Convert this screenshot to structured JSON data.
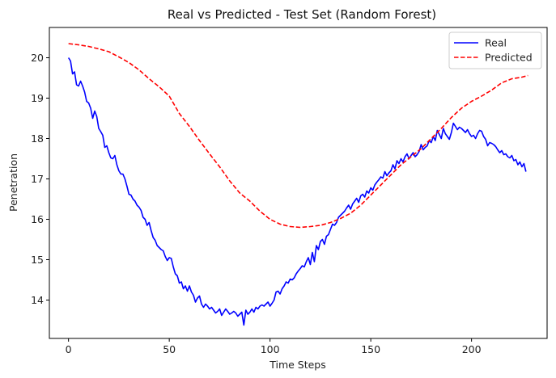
{
  "chart_data": {
    "type": "line",
    "title": "Real vs Predicted - Test Set (Random Forest)",
    "xlabel": "Time Steps",
    "ylabel": "Penetration",
    "xlim": [
      -9.5,
      237.5
    ],
    "ylim": [
      13.05,
      20.75
    ],
    "xticks": [
      0,
      50,
      100,
      150,
      200
    ],
    "yticks": [
      14,
      15,
      16,
      17,
      18,
      19,
      20
    ],
    "grid": false,
    "legend_position": "top-right",
    "colors": {
      "real": "#0000ff",
      "predicted": "#ff0000"
    },
    "series": [
      {
        "name": "Real",
        "style": "solid",
        "points": [
          [
            0,
            20.0
          ],
          [
            1,
            19.92
          ],
          [
            2,
            19.6
          ],
          [
            3,
            19.65
          ],
          [
            4,
            19.33
          ],
          [
            5,
            19.3
          ],
          [
            6,
            19.42
          ],
          [
            7,
            19.3
          ],
          [
            8,
            19.15
          ],
          [
            9,
            18.92
          ],
          [
            10,
            18.88
          ],
          [
            11,
            18.75
          ],
          [
            12,
            18.5
          ],
          [
            13,
            18.68
          ],
          [
            14,
            18.55
          ],
          [
            15,
            18.25
          ],
          [
            16,
            18.17
          ],
          [
            17,
            18.08
          ],
          [
            18,
            17.78
          ],
          [
            19,
            17.82
          ],
          [
            20,
            17.65
          ],
          [
            21,
            17.52
          ],
          [
            22,
            17.5
          ],
          [
            23,
            17.58
          ],
          [
            24,
            17.35
          ],
          [
            25,
            17.2
          ],
          [
            26,
            17.12
          ],
          [
            27,
            17.12
          ],
          [
            28,
            17.0
          ],
          [
            29,
            16.82
          ],
          [
            30,
            16.62
          ],
          [
            31,
            16.6
          ],
          [
            32,
            16.5
          ],
          [
            33,
            16.45
          ],
          [
            34,
            16.35
          ],
          [
            35,
            16.3
          ],
          [
            36,
            16.22
          ],
          [
            37,
            16.05
          ],
          [
            38,
            16.0
          ],
          [
            39,
            15.85
          ],
          [
            40,
            15.92
          ],
          [
            41,
            15.72
          ],
          [
            42,
            15.55
          ],
          [
            43,
            15.48
          ],
          [
            44,
            15.35
          ],
          [
            45,
            15.3
          ],
          [
            46,
            15.25
          ],
          [
            47,
            15.22
          ],
          [
            48,
            15.08
          ],
          [
            49,
            14.98
          ],
          [
            50,
            15.05
          ],
          [
            51,
            15.03
          ],
          [
            52,
            14.82
          ],
          [
            53,
            14.65
          ],
          [
            54,
            14.6
          ],
          [
            55,
            14.42
          ],
          [
            56,
            14.45
          ],
          [
            57,
            14.28
          ],
          [
            58,
            14.35
          ],
          [
            59,
            14.22
          ],
          [
            60,
            14.35
          ],
          [
            61,
            14.2
          ],
          [
            62,
            14.12
          ],
          [
            63,
            13.95
          ],
          [
            64,
            14.05
          ],
          [
            65,
            14.1
          ],
          [
            66,
            13.9
          ],
          [
            67,
            13.82
          ],
          [
            68,
            13.9
          ],
          [
            69,
            13.85
          ],
          [
            70,
            13.78
          ],
          [
            71,
            13.82
          ],
          [
            72,
            13.75
          ],
          [
            73,
            13.68
          ],
          [
            74,
            13.72
          ],
          [
            75,
            13.78
          ],
          [
            76,
            13.62
          ],
          [
            77,
            13.7
          ],
          [
            78,
            13.78
          ],
          [
            79,
            13.72
          ],
          [
            80,
            13.65
          ],
          [
            81,
            13.68
          ],
          [
            82,
            13.72
          ],
          [
            83,
            13.68
          ],
          [
            84,
            13.6
          ],
          [
            85,
            13.65
          ],
          [
            86,
            13.7
          ],
          [
            87,
            13.38
          ],
          [
            88,
            13.75
          ],
          [
            89,
            13.65
          ],
          [
            90,
            13.7
          ],
          [
            91,
            13.78
          ],
          [
            92,
            13.7
          ],
          [
            93,
            13.82
          ],
          [
            94,
            13.78
          ],
          [
            95,
            13.85
          ],
          [
            96,
            13.88
          ],
          [
            97,
            13.85
          ],
          [
            98,
            13.9
          ],
          [
            99,
            13.95
          ],
          [
            100,
            13.85
          ],
          [
            101,
            13.92
          ],
          [
            102,
            14.0
          ],
          [
            103,
            14.2
          ],
          [
            104,
            14.22
          ],
          [
            105,
            14.15
          ],
          [
            106,
            14.28
          ],
          [
            107,
            14.35
          ],
          [
            108,
            14.45
          ],
          [
            109,
            14.42
          ],
          [
            110,
            14.52
          ],
          [
            111,
            14.5
          ],
          [
            112,
            14.55
          ],
          [
            113,
            14.65
          ],
          [
            114,
            14.72
          ],
          [
            115,
            14.78
          ],
          [
            116,
            14.85
          ],
          [
            117,
            14.82
          ],
          [
            118,
            14.95
          ],
          [
            119,
            15.05
          ],
          [
            120,
            14.88
          ],
          [
            121,
            15.18
          ],
          [
            122,
            14.95
          ],
          [
            123,
            15.35
          ],
          [
            124,
            15.25
          ],
          [
            125,
            15.45
          ],
          [
            126,
            15.5
          ],
          [
            127,
            15.38
          ],
          [
            128,
            15.58
          ],
          [
            129,
            15.62
          ],
          [
            130,
            15.75
          ],
          [
            131,
            15.88
          ],
          [
            132,
            15.85
          ],
          [
            133,
            15.92
          ],
          [
            134,
            16.05
          ],
          [
            135,
            16.1
          ],
          [
            136,
            16.15
          ],
          [
            137,
            16.2
          ],
          [
            138,
            16.28
          ],
          [
            139,
            16.35
          ],
          [
            140,
            16.25
          ],
          [
            141,
            16.38
          ],
          [
            142,
            16.45
          ],
          [
            143,
            16.52
          ],
          [
            144,
            16.42
          ],
          [
            145,
            16.58
          ],
          [
            146,
            16.62
          ],
          [
            147,
            16.55
          ],
          [
            148,
            16.7
          ],
          [
            149,
            16.65
          ],
          [
            150,
            16.78
          ],
          [
            151,
            16.72
          ],
          [
            152,
            16.85
          ],
          [
            153,
            16.92
          ],
          [
            154,
            16.98
          ],
          [
            155,
            17.05
          ],
          [
            156,
            17.02
          ],
          [
            157,
            17.18
          ],
          [
            158,
            17.08
          ],
          [
            159,
            17.15
          ],
          [
            160,
            17.2
          ],
          [
            161,
            17.35
          ],
          [
            162,
            17.25
          ],
          [
            163,
            17.45
          ],
          [
            164,
            17.38
          ],
          [
            165,
            17.5
          ],
          [
            166,
            17.42
          ],
          [
            167,
            17.55
          ],
          [
            168,
            17.62
          ],
          [
            169,
            17.5
          ],
          [
            170,
            17.58
          ],
          [
            171,
            17.65
          ],
          [
            172,
            17.55
          ],
          [
            173,
            17.6
          ],
          [
            174,
            17.68
          ],
          [
            175,
            17.85
          ],
          [
            176,
            17.72
          ],
          [
            177,
            17.78
          ],
          [
            178,
            17.82
          ],
          [
            179,
            17.95
          ],
          [
            180,
            17.9
          ],
          [
            181,
            18.05
          ],
          [
            182,
            17.95
          ],
          [
            183,
            18.2
          ],
          [
            184,
            18.1
          ],
          [
            185,
            18.0
          ],
          [
            186,
            18.25
          ],
          [
            187,
            18.12
          ],
          [
            188,
            18.05
          ],
          [
            189,
            17.98
          ],
          [
            190,
            18.15
          ],
          [
            191,
            18.38
          ],
          [
            192,
            18.3
          ],
          [
            193,
            18.22
          ],
          [
            194,
            18.28
          ],
          [
            195,
            18.25
          ],
          [
            196,
            18.2
          ],
          [
            197,
            18.15
          ],
          [
            198,
            18.22
          ],
          [
            199,
            18.12
          ],
          [
            200,
            18.05
          ],
          [
            201,
            18.08
          ],
          [
            202,
            18.0
          ],
          [
            203,
            18.12
          ],
          [
            204,
            18.2
          ],
          [
            205,
            18.18
          ],
          [
            206,
            18.05
          ],
          [
            207,
            17.98
          ],
          [
            208,
            17.82
          ],
          [
            209,
            17.9
          ],
          [
            210,
            17.88
          ],
          [
            211,
            17.85
          ],
          [
            212,
            17.8
          ],
          [
            213,
            17.72
          ],
          [
            214,
            17.65
          ],
          [
            215,
            17.7
          ],
          [
            216,
            17.6
          ],
          [
            217,
            17.62
          ],
          [
            218,
            17.55
          ],
          [
            219,
            17.52
          ],
          [
            220,
            17.58
          ],
          [
            221,
            17.45
          ],
          [
            222,
            17.48
          ],
          [
            223,
            17.35
          ],
          [
            224,
            17.42
          ],
          [
            225,
            17.3
          ],
          [
            226,
            17.38
          ],
          [
            227,
            17.18
          ]
        ]
      },
      {
        "name": "Predicted",
        "style": "dashed",
        "points": [
          [
            0,
            20.35
          ],
          [
            5,
            20.32
          ],
          [
            10,
            20.28
          ],
          [
            15,
            20.22
          ],
          [
            20,
            20.15
          ],
          [
            25,
            20.02
          ],
          [
            30,
            19.88
          ],
          [
            35,
            19.7
          ],
          [
            40,
            19.48
          ],
          [
            45,
            19.28
          ],
          [
            50,
            19.05
          ],
          [
            55,
            18.62
          ],
          [
            60,
            18.3
          ],
          [
            65,
            17.95
          ],
          [
            70,
            17.62
          ],
          [
            75,
            17.3
          ],
          [
            80,
            16.95
          ],
          [
            85,
            16.65
          ],
          [
            90,
            16.45
          ],
          [
            95,
            16.2
          ],
          [
            100,
            16.0
          ],
          [
            105,
            15.88
          ],
          [
            110,
            15.82
          ],
          [
            115,
            15.8
          ],
          [
            120,
            15.82
          ],
          [
            125,
            15.85
          ],
          [
            130,
            15.92
          ],
          [
            135,
            16.02
          ],
          [
            140,
            16.15
          ],
          [
            145,
            16.35
          ],
          [
            150,
            16.6
          ],
          [
            155,
            16.85
          ],
          [
            160,
            17.1
          ],
          [
            165,
            17.35
          ],
          [
            170,
            17.55
          ],
          [
            175,
            17.75
          ],
          [
            180,
            18.0
          ],
          [
            185,
            18.25
          ],
          [
            190,
            18.52
          ],
          [
            195,
            18.75
          ],
          [
            200,
            18.92
          ],
          [
            205,
            19.05
          ],
          [
            210,
            19.2
          ],
          [
            215,
            19.38
          ],
          [
            220,
            19.48
          ],
          [
            225,
            19.52
          ],
          [
            228,
            19.56
          ]
        ]
      }
    ]
  }
}
